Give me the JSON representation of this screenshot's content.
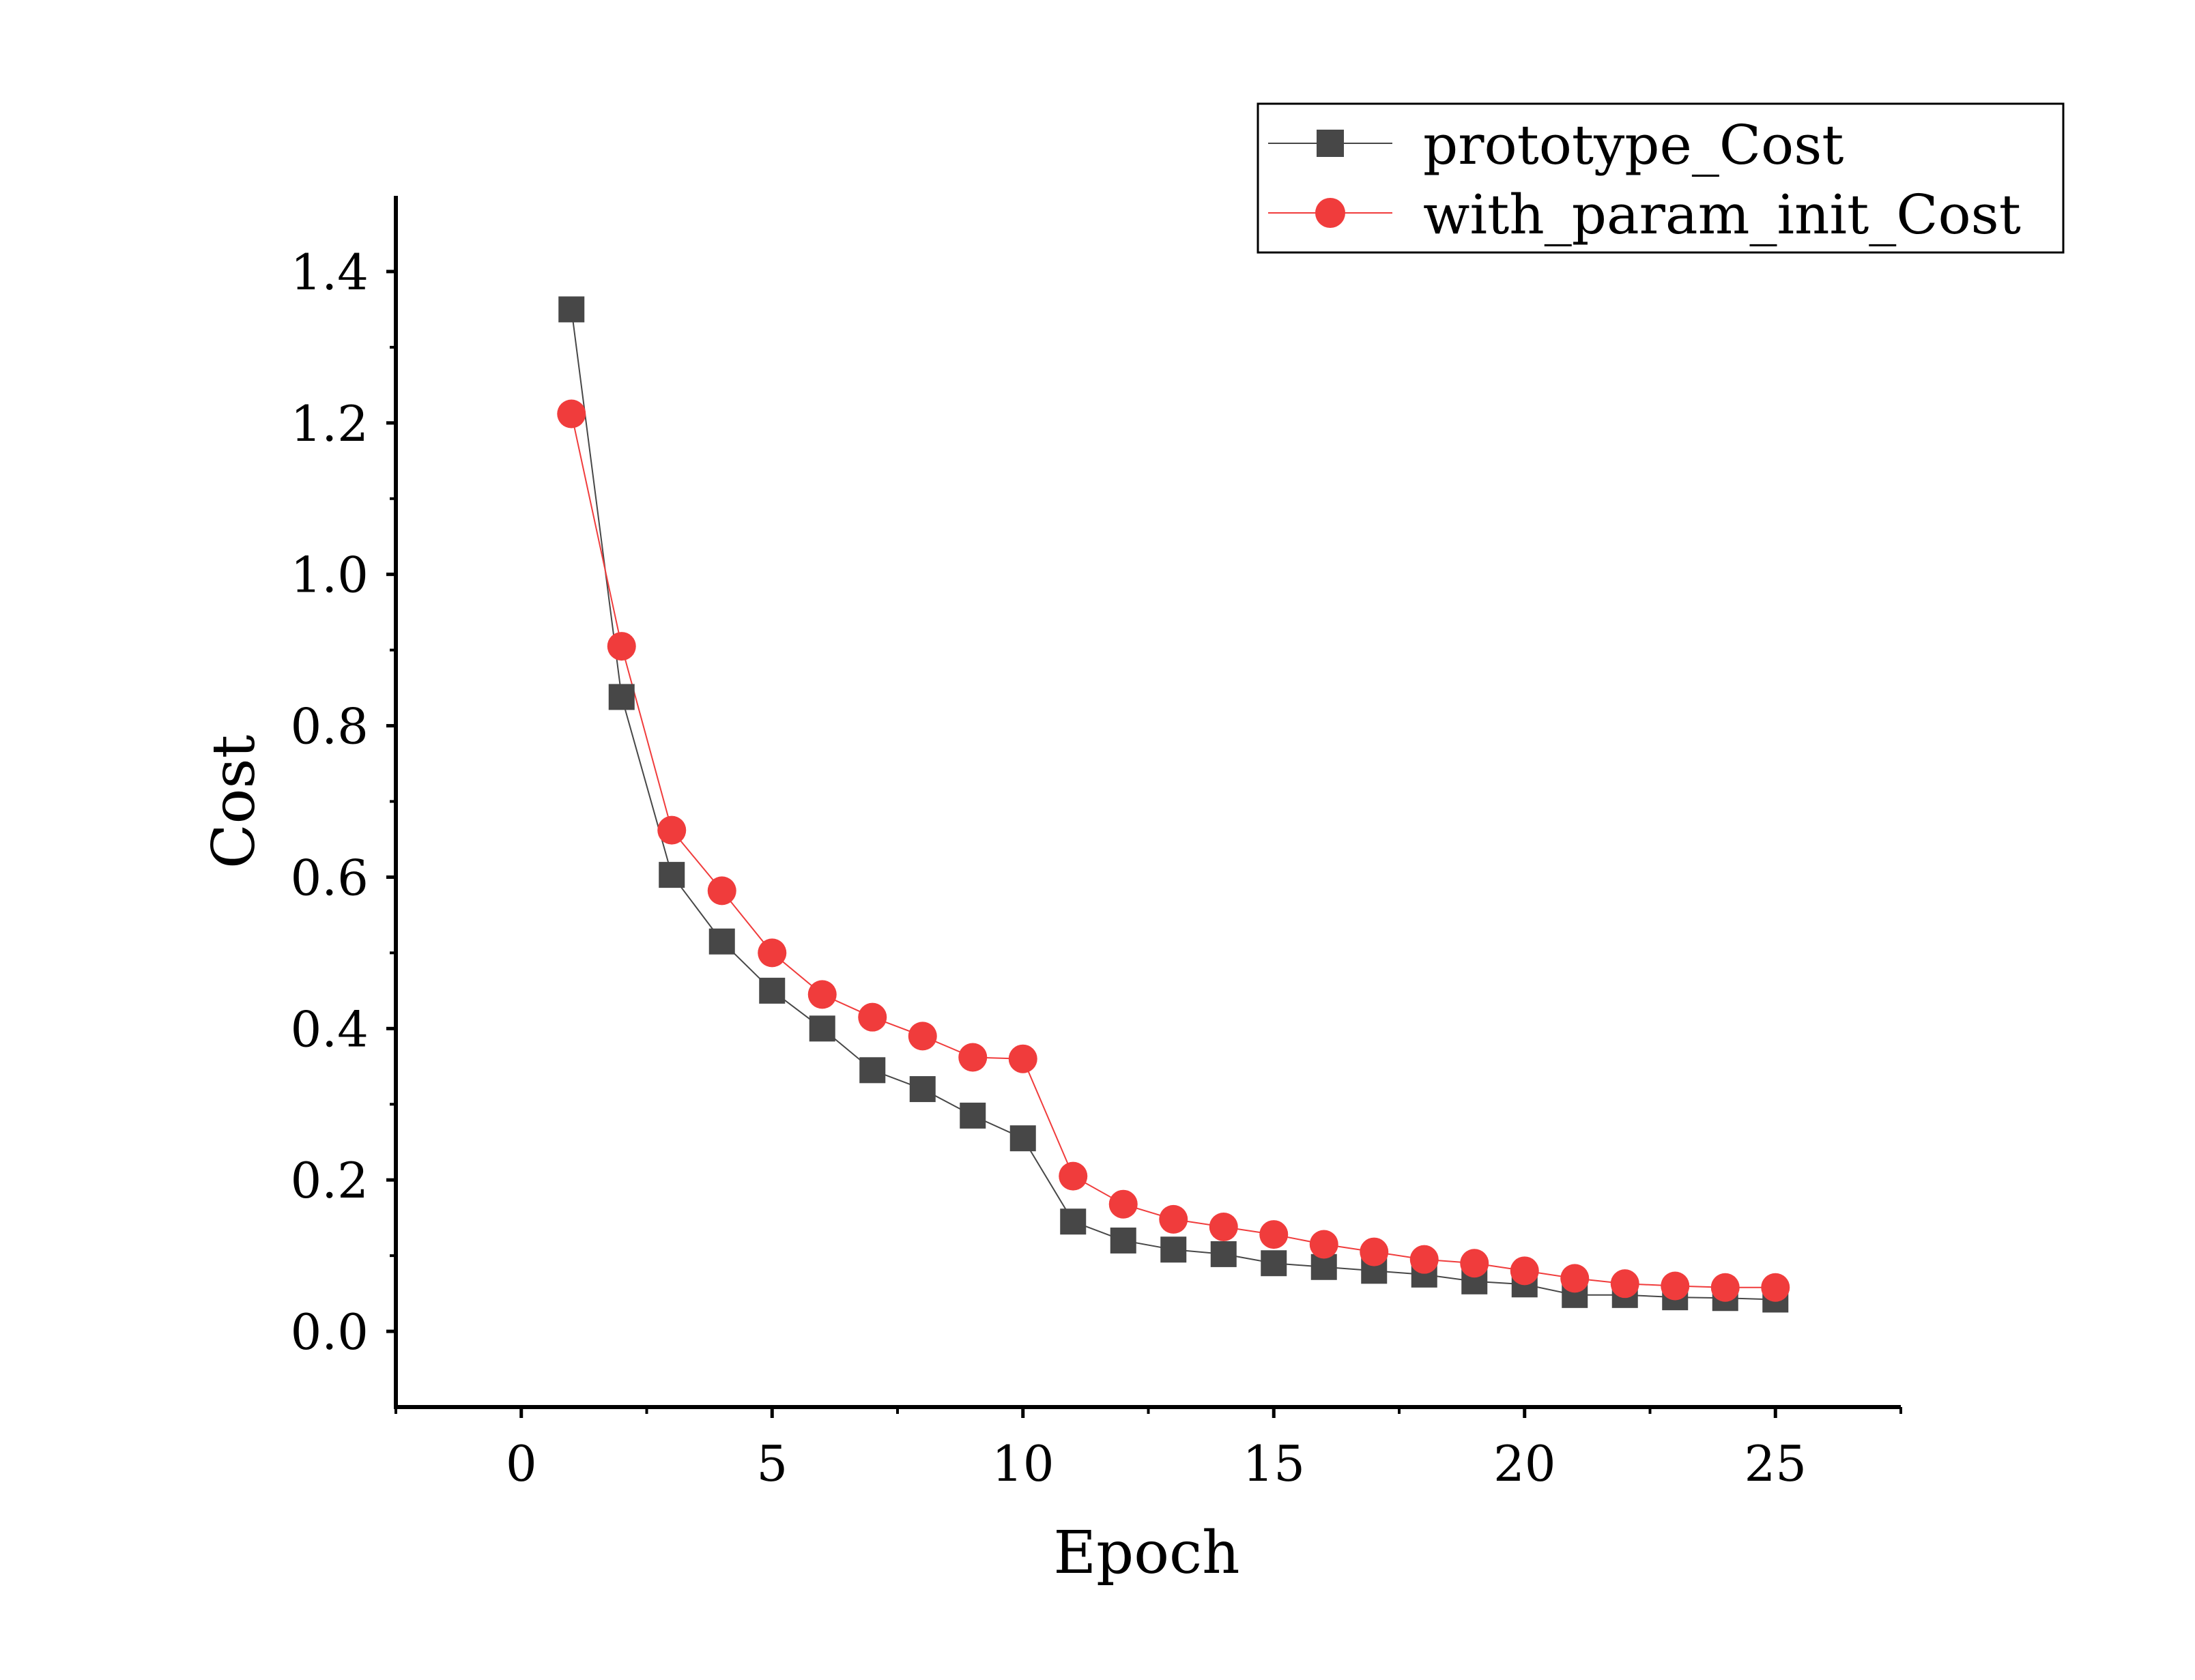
{
  "chart_data": {
    "type": "line",
    "xlabel": "Epoch",
    "ylabel": "Cost",
    "xlim": [
      -2.5,
      27.5
    ],
    "ylim": [
      -0.1,
      1.5
    ],
    "xticks": [
      0,
      5,
      10,
      15,
      20,
      25
    ],
    "xtick_labels": [
      "0",
      "5",
      "10",
      "15",
      "20",
      "25"
    ],
    "yticks": [
      0.0,
      0.2,
      0.4,
      0.6,
      0.8,
      1.0,
      1.2,
      1.4
    ],
    "ytick_labels": [
      "0.0",
      "0.2",
      "0.4",
      "0.6",
      "0.8",
      "1.0",
      "1.2",
      "1.4"
    ],
    "grid": false,
    "legend_position": "top-right",
    "x": [
      1,
      2,
      3,
      4,
      5,
      6,
      7,
      8,
      9,
      10,
      11,
      12,
      13,
      14,
      15,
      16,
      17,
      18,
      19,
      20,
      21,
      22,
      23,
      24,
      25
    ],
    "series": [
      {
        "name": "prototype_Cost",
        "color": "#474747",
        "marker": "square",
        "values": [
          1.35,
          0.838,
          0.603,
          0.515,
          0.45,
          0.4,
          0.345,
          0.32,
          0.285,
          0.255,
          0.145,
          0.12,
          0.108,
          0.102,
          0.09,
          0.085,
          0.08,
          0.075,
          0.066,
          0.062,
          0.048,
          0.048,
          0.045,
          0.044,
          0.042
        ]
      },
      {
        "name": "with_param_init_Cost",
        "color": "#f03c3c",
        "marker": "circle",
        "values": [
          1.212,
          0.905,
          0.662,
          0.582,
          0.5,
          0.445,
          0.415,
          0.39,
          0.362,
          0.36,
          0.205,
          0.168,
          0.148,
          0.138,
          0.128,
          0.115,
          0.105,
          0.095,
          0.09,
          0.08,
          0.07,
          0.063,
          0.06,
          0.058,
          0.058
        ]
      }
    ]
  }
}
